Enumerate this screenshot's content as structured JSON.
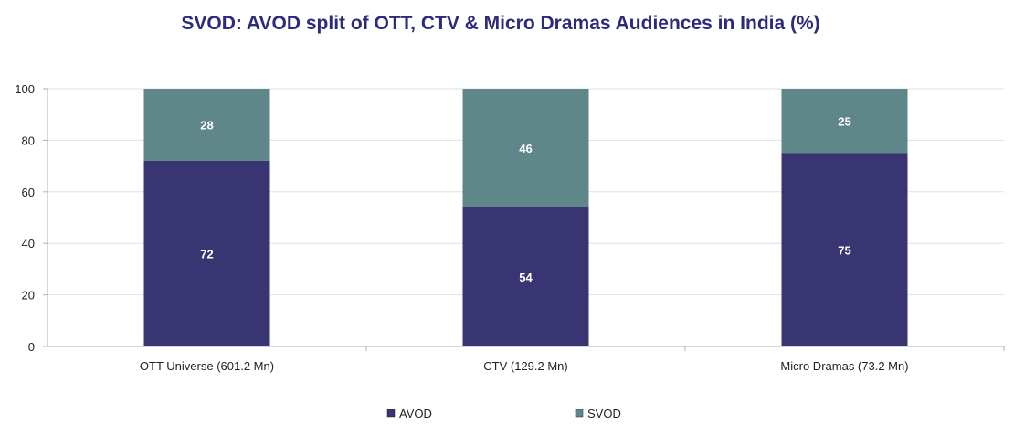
{
  "chart_data": {
    "type": "bar",
    "stacked": true,
    "title": "SVOD: AVOD split of OTT, CTV & Micro Dramas Audiences in India (%)",
    "xlabel": "",
    "ylabel": "",
    "categories": [
      "OTT Universe (601.2 Mn)",
      "CTV (129.2 Mn)",
      "Micro Dramas (73.2 Mn)"
    ],
    "series": [
      {
        "name": "AVOD",
        "values": [
          72,
          54,
          75
        ],
        "color": "#393573"
      },
      {
        "name": "SVOD",
        "values": [
          28,
          46,
          25
        ],
        "color": "#5f878a"
      }
    ],
    "ylim": [
      0,
      100
    ],
    "yticks": [
      0,
      20,
      40,
      60,
      80,
      100
    ],
    "grid": true,
    "legend": "bottom",
    "data_labels": true
  }
}
